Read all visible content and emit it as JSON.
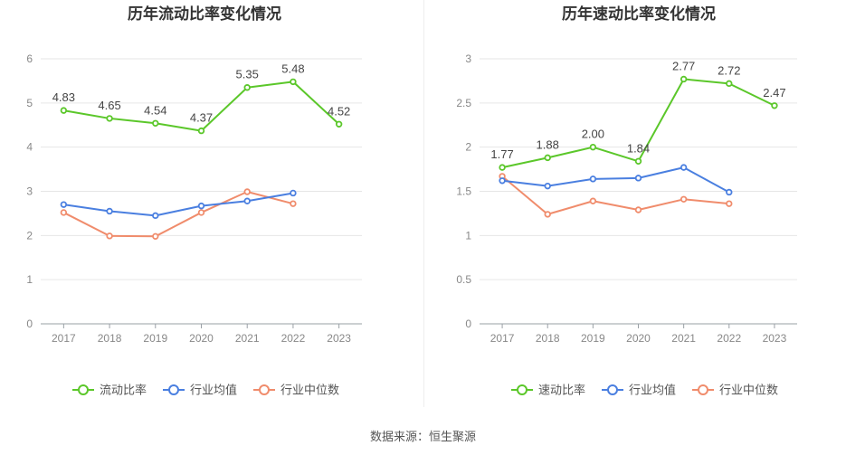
{
  "footer": {
    "source": "数据来源：恒生聚源"
  },
  "colors": {
    "primary": "#5bc72a",
    "industry_avg": "#4a7fe0",
    "industry_median": "#f08c6c",
    "grid": "#e6e6e6",
    "axis": "#9aa0a6"
  },
  "chart_data": [
    {
      "type": "line",
      "title": "历年流动比率变化情况",
      "categories": [
        "2017",
        "2018",
        "2019",
        "2020",
        "2021",
        "2022",
        "2023"
      ],
      "ylim": [
        0,
        6
      ],
      "yticks": [
        "0",
        "1",
        "2",
        "3",
        "4",
        "5",
        "6"
      ],
      "grid": true,
      "legend_position": "bottom",
      "series": [
        {
          "name": "流动比率",
          "color": "#5bc72a",
          "values": [
            4.83,
            4.65,
            4.54,
            4.37,
            5.35,
            5.48,
            4.52
          ],
          "labels": [
            "4.83",
            "4.65",
            "4.54",
            "4.37",
            "5.35",
            "5.48",
            "4.52"
          ]
        },
        {
          "name": "行业均值",
          "color": "#4a7fe0",
          "values": [
            2.7,
            2.55,
            2.45,
            2.67,
            2.78,
            2.96,
            null
          ]
        },
        {
          "name": "行业中位数",
          "color": "#f08c6c",
          "values": [
            2.52,
            1.99,
            1.98,
            2.52,
            2.99,
            2.72,
            null
          ]
        }
      ]
    },
    {
      "type": "line",
      "title": "历年速动比率变化情况",
      "categories": [
        "2017",
        "2018",
        "2019",
        "2020",
        "2021",
        "2022",
        "2023"
      ],
      "ylim": [
        0,
        3
      ],
      "yticks": [
        "0",
        "0.5",
        "1",
        "1.5",
        "2",
        "2.5",
        "3"
      ],
      "grid": true,
      "legend_position": "bottom",
      "series": [
        {
          "name": "速动比率",
          "color": "#5bc72a",
          "values": [
            1.77,
            1.88,
            2.0,
            1.84,
            2.77,
            2.72,
            2.47
          ],
          "labels": [
            "1.77",
            "1.88",
            "2.00",
            "1.84",
            "2.77",
            "2.72",
            "2.47"
          ]
        },
        {
          "name": "行业均值",
          "color": "#4a7fe0",
          "values": [
            1.62,
            1.56,
            1.64,
            1.65,
            1.77,
            1.49,
            null
          ]
        },
        {
          "name": "行业中位数",
          "color": "#f08c6c",
          "values": [
            1.67,
            1.24,
            1.39,
            1.29,
            1.41,
            1.36,
            null
          ]
        }
      ]
    }
  ]
}
